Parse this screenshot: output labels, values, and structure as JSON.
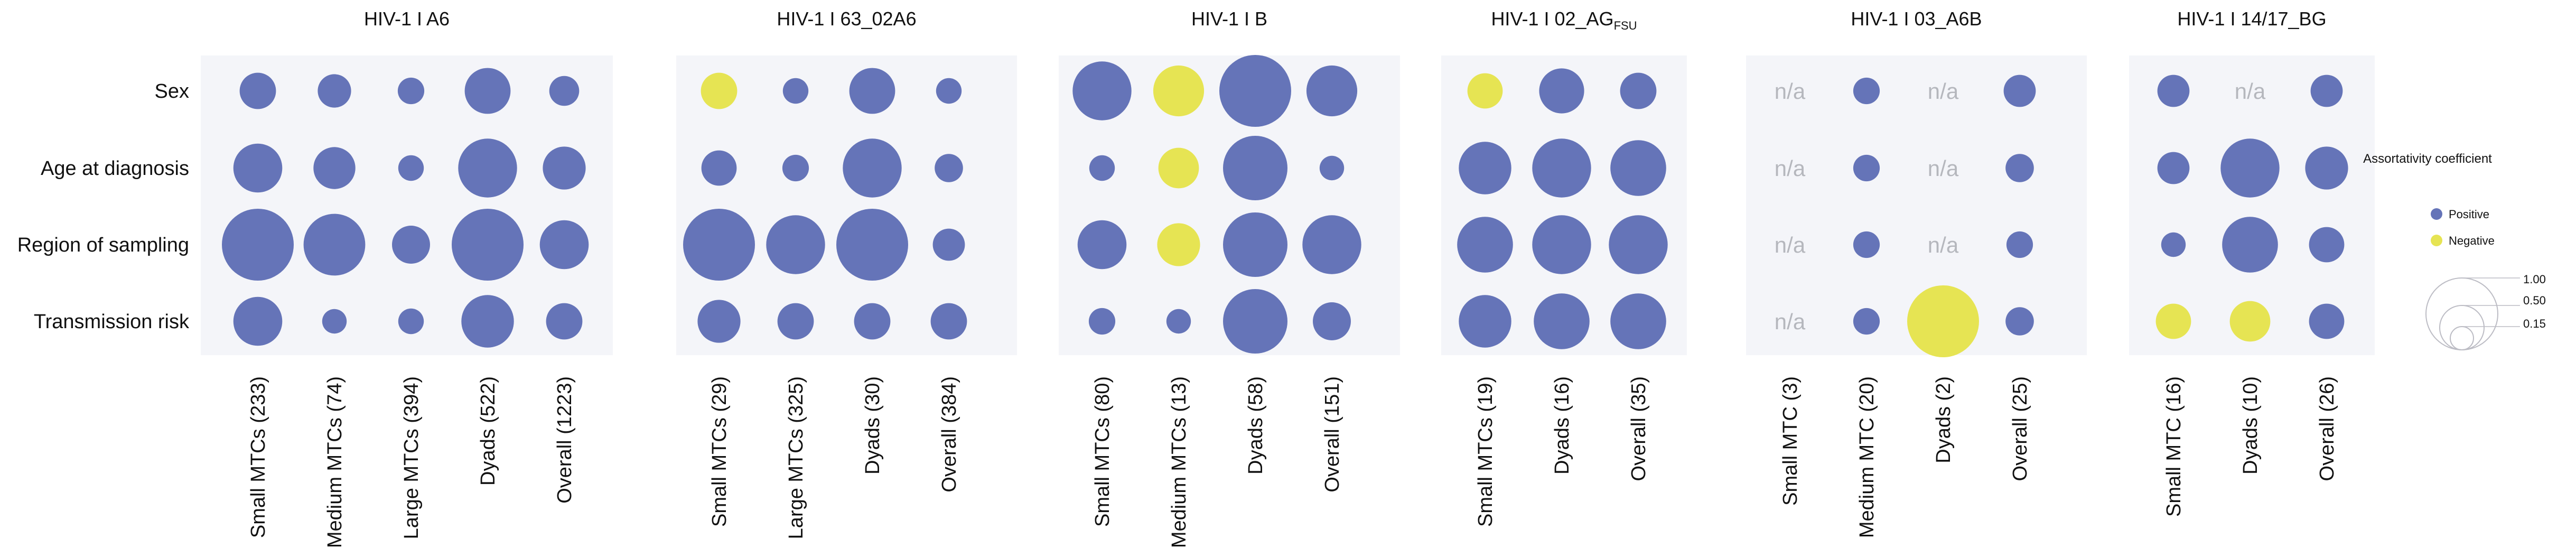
{
  "chart_data": {
    "type": "bubble-matrix",
    "rows": [
      "Sex",
      "Age at diagnosis",
      "Region of sampling",
      "Transmission risk"
    ],
    "size_legend": {
      "values": [
        1.0,
        0.5,
        0.15
      ]
    },
    "colors": {
      "positive": "#6574b8",
      "negative": "#e6e453",
      "panel_bg": "#f4f5f9",
      "na_text": "#b5b7bd"
    },
    "legend": {
      "title": "Assortativity coefficient",
      "items": [
        {
          "label": "Positive",
          "sign": 1
        },
        {
          "label": "Negative",
          "sign": -1
        }
      ],
      "size_labels": [
        "1.00",
        "0.50",
        "0.15"
      ]
    },
    "panels": [
      {
        "title": "HIV-1 I A6",
        "title_sub": "",
        "columns": [
          "Small MTCs (233)",
          "Medium MTCs (74)",
          "Large MTCs (394)",
          "Dyads (522)",
          "Overall (1223)"
        ],
        "cells": [
          [
            {
              "v": 0.22,
              "s": 1
            },
            {
              "v": 0.17,
              "s": 1
            },
            {
              "v": 0.08,
              "s": 1
            },
            {
              "v": 0.42,
              "s": 1
            },
            {
              "v": 0.12,
              "s": 1
            }
          ],
          [
            {
              "v": 0.5,
              "s": 1
            },
            {
              "v": 0.33,
              "s": 1
            },
            {
              "v": 0.07,
              "s": 1
            },
            {
              "v": 0.8,
              "s": 1
            },
            {
              "v": 0.35,
              "s": 1
            }
          ],
          [
            {
              "v": 1.3,
              "s": 1
            },
            {
              "v": 0.9,
              "s": 1
            },
            {
              "v": 0.25,
              "s": 1
            },
            {
              "v": 1.3,
              "s": 1
            },
            {
              "v": 0.5,
              "s": 1
            }
          ],
          [
            {
              "v": 0.5,
              "s": 1
            },
            {
              "v": 0.06,
              "s": 1
            },
            {
              "v": 0.07,
              "s": 1
            },
            {
              "v": 0.6,
              "s": 1
            },
            {
              "v": 0.22,
              "s": 1
            }
          ]
        ]
      },
      {
        "title": "HIV-1 I 63_02A6",
        "title_sub": "",
        "columns": [
          "Small MTCs (29)",
          "Large MTCs (325)",
          "Dyads (30)",
          "Overall (384)"
        ],
        "cells": [
          [
            {
              "v": 0.22,
              "s": -1
            },
            {
              "v": 0.07,
              "s": 1
            },
            {
              "v": 0.42,
              "s": 1
            },
            {
              "v": 0.07,
              "s": 1
            }
          ],
          [
            {
              "v": 0.2,
              "s": 1
            },
            {
              "v": 0.08,
              "s": 1
            },
            {
              "v": 0.8,
              "s": 1
            },
            {
              "v": 0.1,
              "s": 1
            }
          ],
          [
            {
              "v": 1.3,
              "s": 1
            },
            {
              "v": 0.8,
              "s": 1
            },
            {
              "v": 1.3,
              "s": 1
            },
            {
              "v": 0.15,
              "s": 1
            }
          ],
          [
            {
              "v": 0.35,
              "s": 1
            },
            {
              "v": 0.22,
              "s": 1
            },
            {
              "v": 0.22,
              "s": 1
            },
            {
              "v": 0.22,
              "s": 1
            }
          ]
        ]
      },
      {
        "title": "HIV-1 I B",
        "title_sub": "",
        "columns": [
          "Small MTCs (80)",
          "Medium MTCs (13)",
          "Dyads (58)",
          "Overall (151)"
        ],
        "cells": [
          [
            {
              "v": 0.8,
              "s": 1
            },
            {
              "v": 0.55,
              "s": -1
            },
            {
              "v": 1.3,
              "s": 1
            },
            {
              "v": 0.55,
              "s": 1
            }
          ],
          [
            {
              "v": 0.07,
              "s": 1
            },
            {
              "v": 0.3,
              "s": -1
            },
            {
              "v": 1.0,
              "s": 1
            },
            {
              "v": 0.06,
              "s": 1
            }
          ],
          [
            {
              "v": 0.5,
              "s": 1
            },
            {
              "v": 0.35,
              "s": -1
            },
            {
              "v": 1.0,
              "s": 1
            },
            {
              "v": 0.8,
              "s": 1
            }
          ],
          [
            {
              "v": 0.08,
              "s": 1
            },
            {
              "v": 0.06,
              "s": 1
            },
            {
              "v": 1.0,
              "s": 1
            },
            {
              "v": 0.25,
              "s": 1
            }
          ]
        ]
      },
      {
        "title": "HIV-1 I 02_AG",
        "title_sub": "FSU",
        "columns": [
          "Small MTCs (19)",
          "Dyads (16)",
          "Overall (35)"
        ],
        "cells": [
          [
            {
              "v": 0.2,
              "s": -1
            },
            {
              "v": 0.4,
              "s": 1
            },
            {
              "v": 0.22,
              "s": 1
            }
          ],
          [
            {
              "v": 0.6,
              "s": 1
            },
            {
              "v": 0.8,
              "s": 1
            },
            {
              "v": 0.7,
              "s": 1
            }
          ],
          [
            {
              "v": 0.7,
              "s": 1
            },
            {
              "v": 0.8,
              "s": 1
            },
            {
              "v": 0.8,
              "s": 1
            }
          ],
          [
            {
              "v": 0.6,
              "s": 1
            },
            {
              "v": 0.7,
              "s": 1
            },
            {
              "v": 0.7,
              "s": 1
            }
          ]
        ]
      },
      {
        "title": "HIV-1 I 03_A6B",
        "title_sub": "",
        "columns": [
          "Small MTC (3)",
          "Medium MTC (20)",
          "Dyads (2)",
          "Overall (25)"
        ],
        "cells": [
          [
            null,
            {
              "v": 0.08,
              "s": 1
            },
            null,
            {
              "v": 0.15,
              "s": 1
            }
          ],
          [
            null,
            {
              "v": 0.08,
              "s": 1
            },
            null,
            {
              "v": 0.1,
              "s": 1
            }
          ],
          [
            null,
            {
              "v": 0.08,
              "s": 1
            },
            null,
            {
              "v": 0.08,
              "s": 1
            }
          ],
          [
            null,
            {
              "v": 0.08,
              "s": 1
            },
            {
              "v": 1.3,
              "s": -1
            },
            {
              "v": 0.1,
              "s": 1
            }
          ]
        ]
      },
      {
        "title": "HIV-1 I 14/17_BG",
        "title_sub": "",
        "columns": [
          "Small MTC (16)",
          "Dyads (10)",
          "Overall (26)"
        ],
        "cells": [
          [
            {
              "v": 0.15,
              "s": 1
            },
            null,
            {
              "v": 0.15,
              "s": 1
            }
          ],
          [
            {
              "v": 0.15,
              "s": 1
            },
            {
              "v": 0.8,
              "s": 1
            },
            {
              "v": 0.35,
              "s": 1
            }
          ],
          [
            {
              "v": 0.06,
              "s": 1
            },
            {
              "v": 0.7,
              "s": 1
            },
            {
              "v": 0.2,
              "s": 1
            }
          ],
          [
            {
              "v": 0.2,
              "s": -1
            },
            {
              "v": 0.3,
              "s": -1
            },
            {
              "v": 0.2,
              "s": 1
            }
          ]
        ]
      }
    ],
    "na_label": "n/a"
  }
}
